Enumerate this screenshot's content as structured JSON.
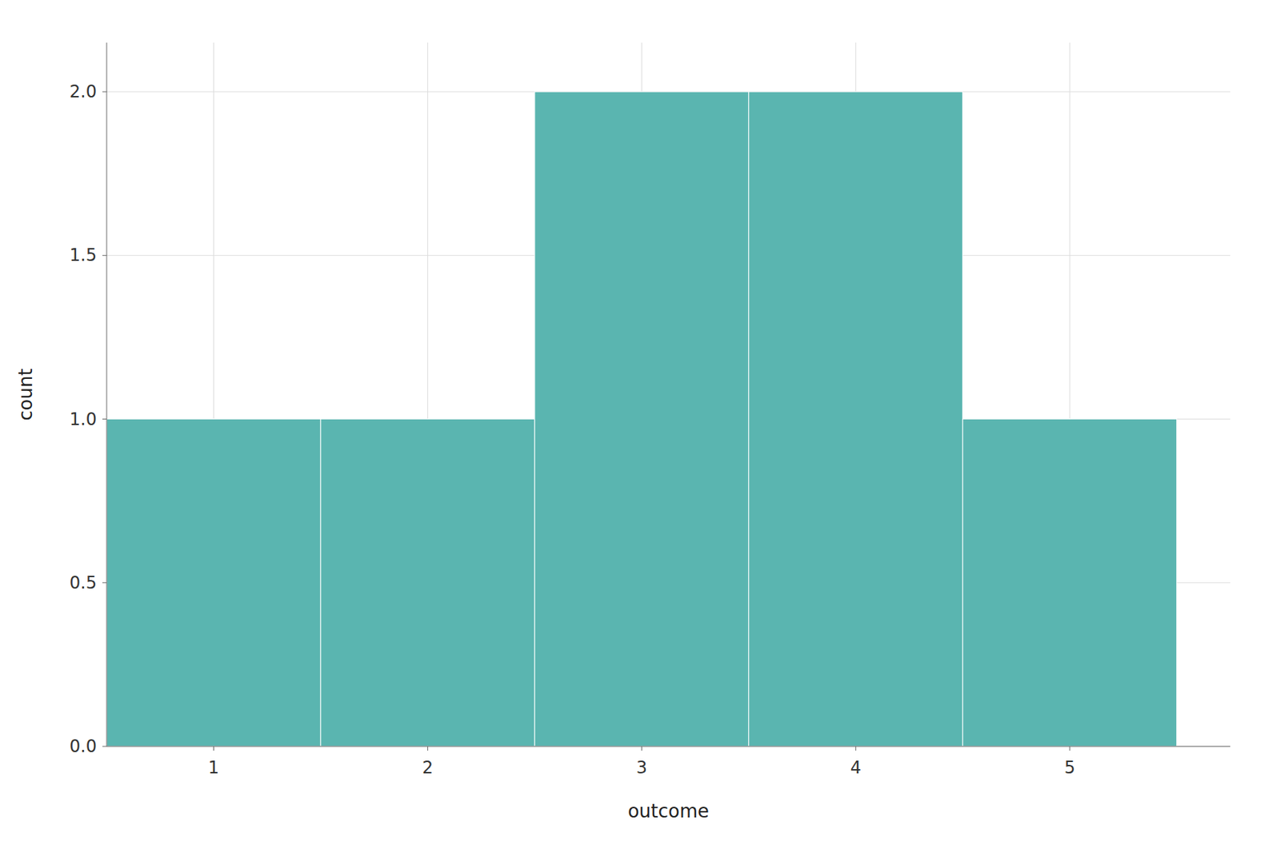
{
  "chart_data": {
    "type": "histogram",
    "bins": [
      0.5,
      1.5,
      2.5,
      3.5,
      4.5,
      5.5
    ],
    "values": [
      1,
      1,
      2,
      2,
      1
    ],
    "color": "#5ab5b0",
    "x_label": "outcome",
    "y_label": "count",
    "xlim": [
      0.5,
      5.75
    ],
    "ylim": [
      0,
      2.15
    ],
    "xticks": [
      1,
      2,
      3,
      4,
      5
    ],
    "yticks": [
      {
        "value": 0.0,
        "label": "0.0"
      },
      0.5,
      {
        "value": 1.0,
        "label": "1.0"
      },
      1.5,
      {
        "value": 2.0,
        "label": "2.0"
      }
    ],
    "grid": true
  }
}
